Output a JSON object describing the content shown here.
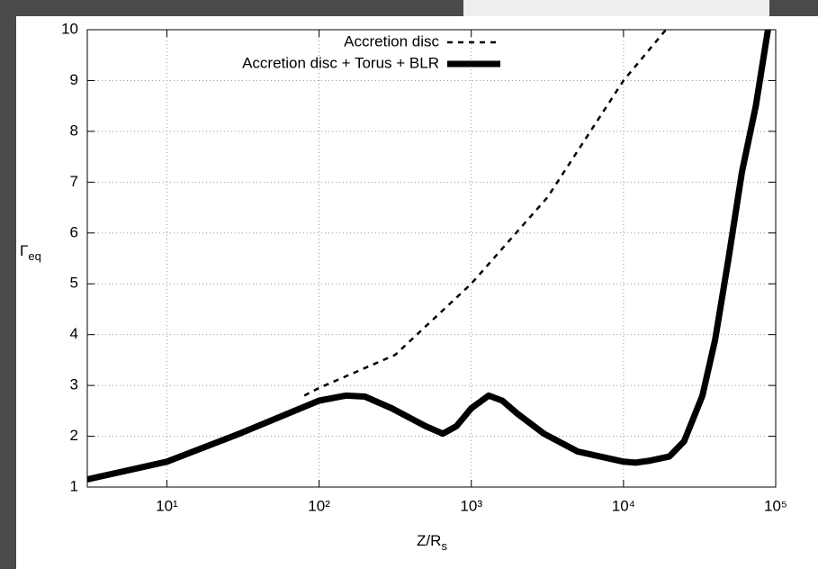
{
  "chart_data": {
    "type": "line",
    "xlabel": [
      "Z/R",
      "s"
    ],
    "ylabel": [
      "Γ",
      "eq"
    ],
    "xlog": true,
    "grid": true,
    "legend": "top-right",
    "xlim": [
      3,
      100000
    ],
    "ylim": [
      1,
      10
    ],
    "xticks": [
      {
        "value": 10,
        "label": "10¹"
      },
      {
        "value": 100,
        "label": "10²"
      },
      {
        "value": 1000,
        "label": "10³"
      },
      {
        "value": 10000,
        "label": "10⁴"
      },
      {
        "value": 100000,
        "label": "10⁵"
      }
    ],
    "yticks": [
      1,
      2,
      3,
      4,
      5,
      6,
      7,
      8,
      9,
      10
    ],
    "series": [
      {
        "name": "Accretion disc",
        "color": "#000000",
        "dash": true,
        "x": [
          80,
          100,
          316,
          1000,
          3162,
          10000,
          19000
        ],
        "values": [
          2.8,
          2.95,
          3.6,
          5.0,
          6.7,
          9.0,
          10
        ]
      },
      {
        "name": "Accretion disc + Torus + BLR",
        "color": "#000000",
        "dash": false,
        "x": [
          3,
          10,
          30,
          100,
          150,
          200,
          300,
          500,
          650,
          800,
          1000,
          1300,
          1600,
          2000,
          3000,
          5000,
          10000,
          12000,
          15000,
          20000,
          25000,
          33000,
          40000,
          49000,
          60000,
          74000,
          89000
        ],
        "values": [
          1.15,
          1.5,
          2.05,
          2.7,
          2.8,
          2.78,
          2.55,
          2.2,
          2.05,
          2.2,
          2.55,
          2.8,
          2.7,
          2.45,
          2.05,
          1.7,
          1.5,
          1.48,
          1.52,
          1.6,
          1.9,
          2.8,
          3.9,
          5.5,
          7.2,
          8.5,
          10
        ]
      }
    ]
  }
}
